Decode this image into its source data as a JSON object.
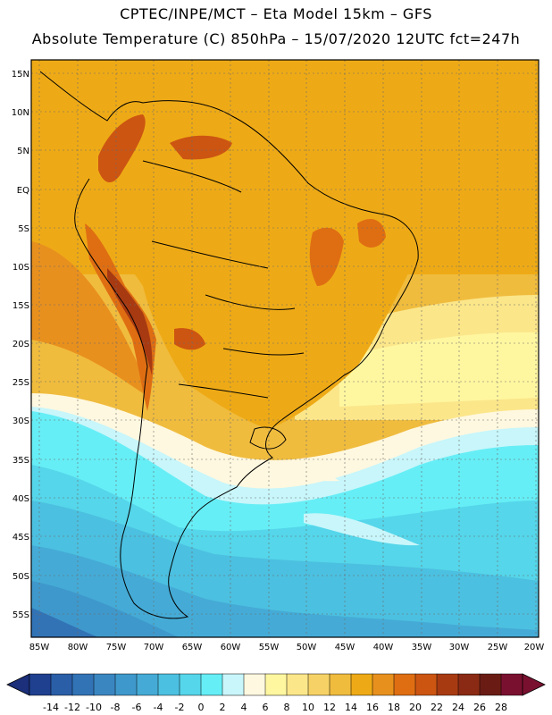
{
  "header": {
    "line1": "CPTEC/INPE/MCT –  Eta Model 15km – GFS",
    "line2": "Absolute Temperature (C) 850hPa – 15/07/2020 12UTC fct=247h"
  },
  "map": {
    "lat_labels": [
      "15N",
      "10N",
      "5N",
      "EQ",
      "5S",
      "10S",
      "15S",
      "20S",
      "25S",
      "30S",
      "35S",
      "40S",
      "45S",
      "50S",
      "55S"
    ],
    "lon_labels": [
      "85W",
      "80W",
      "75W",
      "70W",
      "65W",
      "60W",
      "55W",
      "50W",
      "45W",
      "40W",
      "35W",
      "30W",
      "25W",
      "20W"
    ]
  },
  "colorbar": {
    "labels": [
      "-14",
      "-12",
      "-10",
      "-8",
      "-6",
      "-4",
      "-2",
      "0",
      "2",
      "4",
      "6",
      "8",
      "10",
      "12",
      "14",
      "16",
      "18",
      "20",
      "22",
      "24",
      "26",
      "28"
    ],
    "colors": [
      "#1f3f8f",
      "#2a5ea7",
      "#3273b6",
      "#3a86c1",
      "#3f98cb",
      "#45abd6",
      "#4cc0e0",
      "#55d6ea",
      "#66eef6",
      "#c8f6fa",
      "#fff8e0",
      "#fff7a0",
      "#fbe68a",
      "#f6d266",
      "#f0bc3e",
      "#eeaa16",
      "#e8901e",
      "#df6e12",
      "#cc5512",
      "#a83a12",
      "#8a2a14",
      "#6a1c14",
      "#7a1030"
    ],
    "under_color": "#1b2f7a",
    "over_color": "#7a1030"
  }
}
